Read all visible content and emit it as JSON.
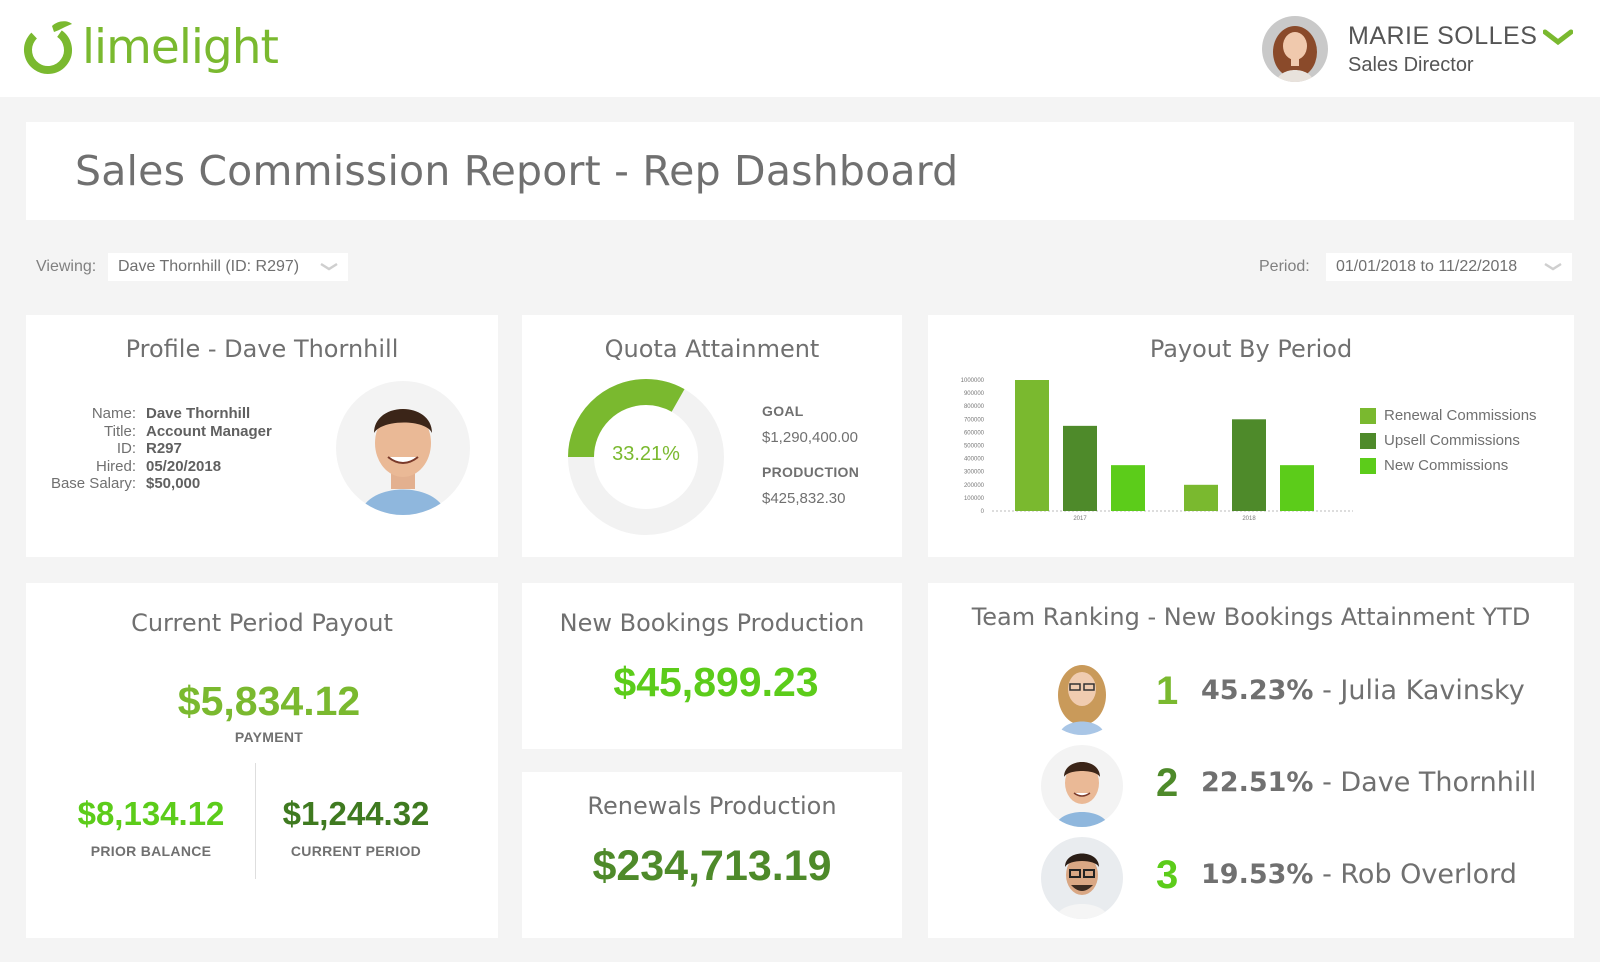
{
  "brand": {
    "name": "limelight",
    "color": "#7ab92f"
  },
  "user": {
    "name": "MARIE SOLLES",
    "role": "Sales Director"
  },
  "page": {
    "title": "Sales Commission Report - Rep Dashboard"
  },
  "filters": {
    "viewing_label": "Viewing:",
    "viewing_value": "Dave Thornhill (ID: R297)",
    "period_label": "Period:",
    "period_value": "01/01/2018 to 11/22/2018"
  },
  "profile": {
    "title": "Profile - Dave Thornhill",
    "fields": [
      {
        "key": "Name:",
        "value": "Dave Thornhill"
      },
      {
        "key": "Title:",
        "value": "Account Manager"
      },
      {
        "key": "ID:",
        "value": "R297"
      },
      {
        "key": "Hired:",
        "value": "05/20/2018"
      },
      {
        "key": "Base Salary:",
        "value": "$50,000"
      }
    ]
  },
  "quota": {
    "title": "Quota Attainment",
    "percent_label": "33.21%",
    "percent": 33.21,
    "goal_label": "GOAL",
    "goal_value": "$1,290,400.00",
    "production_label": "PRODUCTION",
    "production_value": "$425,832.30"
  },
  "payout_chart": {
    "title": "Payout By Period"
  },
  "chart_data": {
    "type": "bar",
    "categories": [
      "2017",
      "2018"
    ],
    "series": [
      {
        "name": "Renewal Commissions",
        "values": [
          1000000,
          200000
        ],
        "color": "#7ab92f"
      },
      {
        "name": "Upsell Commissions",
        "values": [
          650000,
          700000
        ],
        "color": "#4e8a2a"
      },
      {
        "name": "New Commissions",
        "values": [
          350000,
          350000
        ],
        "color": "#5ccc1a"
      }
    ],
    "ylim": [
      0,
      1000000
    ],
    "yticks": [
      "0",
      "100000",
      "200000",
      "300000",
      "400000",
      "500000",
      "600000",
      "700000",
      "800000",
      "900000",
      "1000000"
    ],
    "legend": "right"
  },
  "current_payout": {
    "title": "Current Period Payout",
    "payment_value": "$5,834.12",
    "payment_label": "PAYMENT",
    "prior_value": "$8,134.12",
    "prior_label": "PRIOR BALANCE",
    "current_value": "$1,244.32",
    "current_label": "CURRENT PERIOD"
  },
  "new_bookings": {
    "title": "New Bookings Production",
    "value": "$45,899.23"
  },
  "renewals": {
    "title": "Renewals Production",
    "value": "$234,713.19"
  },
  "ranking": {
    "title": "Team Ranking - New Bookings Attainment YTD",
    "rows": [
      {
        "rank": "1",
        "percent": "45.23%",
        "name": "- Julia Kavinsky"
      },
      {
        "rank": "2",
        "percent": "22.51%",
        "name": "- Dave Thornhill"
      },
      {
        "rank": "3",
        "percent": "19.53%",
        "name": "- Rob Overlord"
      }
    ]
  },
  "colors": {
    "green_light": "#7ab92f",
    "green_dark": "#4e8a2a",
    "green_bright": "#5ccc1a"
  }
}
